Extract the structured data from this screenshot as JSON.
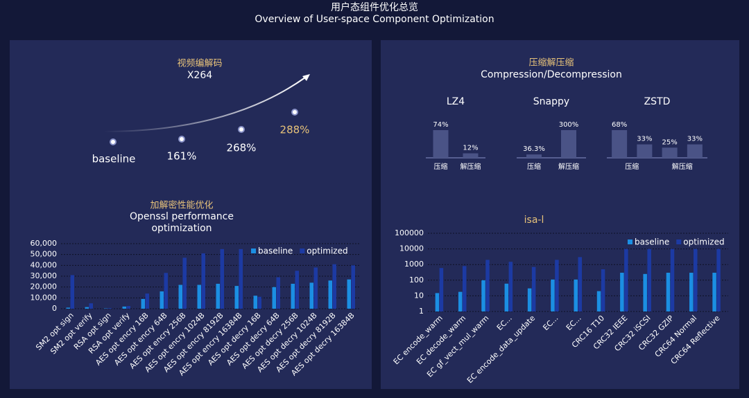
{
  "header": {
    "title": "用户态组件优化总览",
    "subtitle": "Overview of User-space Component Optimization"
  },
  "x264": {
    "title": "视频编解码",
    "subtitle": "X264",
    "labels": [
      "baseline",
      "161%",
      "268%",
      "288%"
    ]
  },
  "openssl": {
    "type": "bar",
    "title": "加解密性能优化",
    "subtitle": [
      "Openssl performance",
      "optimization"
    ],
    "categories": [
      "SM2 opt sign",
      "SM2 opt verify",
      "RSA opt sign",
      "RSA opt verify",
      "AES opt encry 16B",
      "AES opt encry 64B",
      "AES opt encry 256B",
      "AES opt encry 1024B",
      "AES opt encry 8192B",
      "AES opt encry 16384B",
      "AES opt decry 16B",
      "AES opt decry 64B",
      "AES opt decry 256B",
      "AES opt decry 1024B",
      "AES opt decry 8192B",
      "AES opt decry 16384B"
    ],
    "series": [
      {
        "name": "baseline",
        "color": "#1b8fe3",
        "values": [
          1000,
          1500,
          300,
          2000,
          9000,
          16000,
          22000,
          22000,
          23000,
          21000,
          12000,
          20000,
          23000,
          24000,
          26000,
          27000
        ]
      },
      {
        "name": "optimized",
        "color": "#1c3aa3",
        "values": [
          31000,
          5000,
          600,
          2500,
          14000,
          33000,
          47000,
          51000,
          55000,
          55000,
          11000,
          29000,
          35000,
          38000,
          41000,
          40000
        ]
      }
    ],
    "ylim": [
      0,
      60000
    ],
    "yticks": [
      0,
      {
        "value": 10000,
        "label": "10,000"
      },
      {
        "value": 20000,
        "label": "20,000"
      },
      {
        "value": 30000,
        "label": "30,000"
      },
      {
        "value": 40000,
        "label": "40,000"
      },
      {
        "value": 50000,
        "label": "50,000"
      },
      {
        "value": 60000,
        "label": "60,000"
      }
    ],
    "grid": true
  },
  "compression": {
    "title": "压缩解压缩",
    "subtitle": "Compression/Decompression",
    "charts": [
      {
        "type": "bar",
        "title": "LZ4",
        "categories": [
          "压缩",
          "解压缩"
        ],
        "values": [
          74,
          12
        ],
        "value_labels": [
          "74%",
          "12%"
        ],
        "color": "#4a5386"
      },
      {
        "type": "bar",
        "title": "Snappy",
        "categories": [
          "压缩",
          "解压缩"
        ],
        "values": [
          36.3,
          300
        ],
        "value_labels": [
          "36.3%",
          "300%"
        ],
        "color": "#4a5386"
      },
      {
        "type": "bar",
        "title": "ZSTD",
        "categories": [
          "压缩",
          "解压缩"
        ],
        "groups": [
          [
            68,
            33
          ],
          [
            25,
            33
          ]
        ],
        "value_labels": [
          [
            "68%",
            "33%"
          ],
          [
            "25%",
            "33%"
          ]
        ],
        "color": "#4a5386"
      }
    ]
  },
  "isal": {
    "type": "bar",
    "title": "isa-l",
    "categories": [
      "EC encode_warm",
      "EC decode_warm",
      "EC gf_vect_mul_warm",
      "EC...",
      "EC encode_data_update",
      "EC...",
      "EC...",
      "CRC16 T10",
      "CRC32 IEEE",
      "CRC32 iSCSI",
      "CRC32 GZIP",
      "CRC64 Normal",
      "CRC64 Reflective"
    ],
    "series": [
      {
        "name": "baseline",
        "color": "#1b8fe3",
        "values": [
          15,
          18,
          100,
          60,
          30,
          110,
          110,
          20,
          300,
          250,
          300,
          300,
          300
        ]
      },
      {
        "name": "optimized",
        "color": "#1c3aa3",
        "values": [
          600,
          800,
          2000,
          1500,
          700,
          2000,
          3000,
          500,
          10000,
          10000,
          10000,
          10000,
          10000
        ]
      }
    ],
    "log": true,
    "ylim": [
      1,
      100000
    ],
    "yticks": [
      1,
      10,
      100,
      1000,
      10000,
      100000
    ],
    "grid": true
  }
}
